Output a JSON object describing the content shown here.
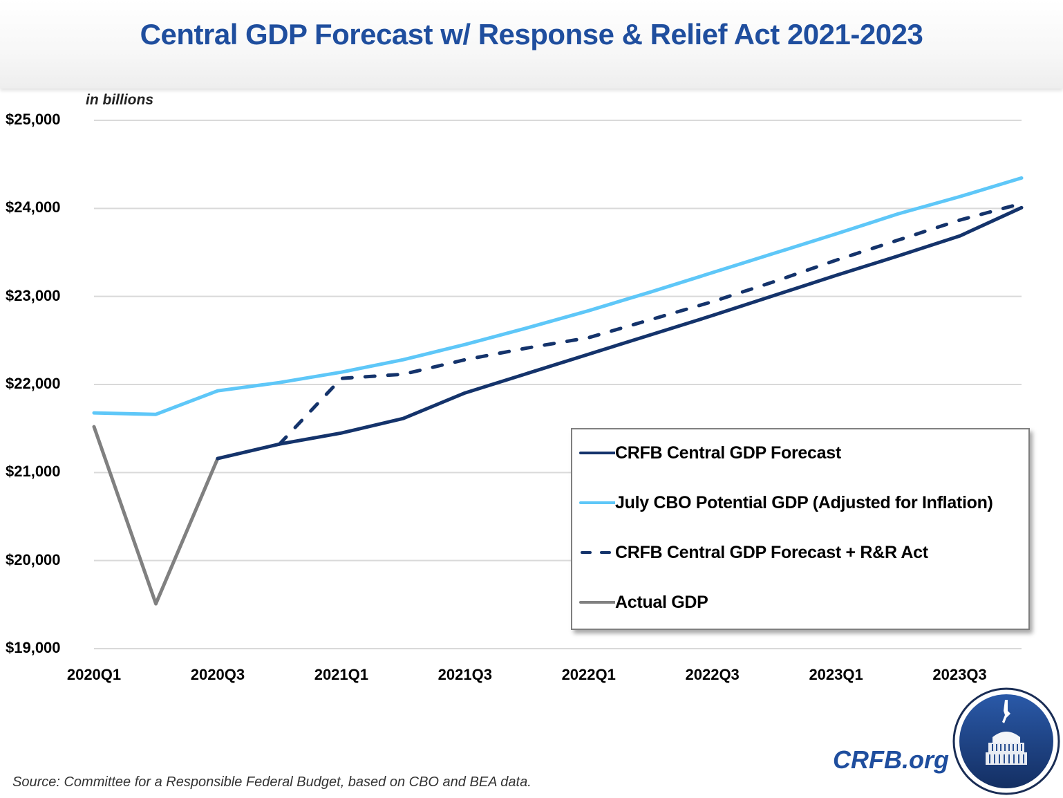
{
  "header": {
    "title": "Central GDP Forecast w/ Response & Relief Act 2021-2023"
  },
  "footer": {
    "source": "Source: Committee for a Responsible Federal Budget, based on CBO and BEA data.",
    "brand": "CRFB.org",
    "logo_icon": "capitol-dome-seal-icon"
  },
  "colors": {
    "title": "#1f4e9e",
    "crfb_forecast": "#14336b",
    "cbo_potential": "#5ec7f8",
    "actual": "#808080",
    "gridline": "#d9d9d9"
  },
  "chart_data": {
    "type": "line",
    "title": "Central GDP Forecast w/ Response & Relief Act 2021-2023",
    "unit_label": "in billions",
    "xlabel": "",
    "ylabel": "",
    "ylim": [
      19000,
      25000
    ],
    "grid": true,
    "legend_position": "bottom-right",
    "x": [
      "2020Q1",
      "2020Q2",
      "2020Q3",
      "2020Q4",
      "2021Q1",
      "2021Q2",
      "2021Q3",
      "2021Q4",
      "2022Q1",
      "2022Q2",
      "2022Q3",
      "2022Q4",
      "2023Q1",
      "2023Q2",
      "2023Q3",
      "2023Q4"
    ],
    "x_tick_labels": [
      "2020Q1",
      "2020Q3",
      "2021Q1",
      "2021Q3",
      "2022Q1",
      "2022Q3",
      "2023Q1",
      "2023Q3"
    ],
    "y_ticks": [
      19000,
      20000,
      21000,
      22000,
      23000,
      24000,
      25000
    ],
    "y_tick_labels": [
      "$19,000",
      "$20,000",
      "$21,000",
      "$22,000",
      "$23,000",
      "$24,000",
      "$25,000"
    ],
    "series": [
      {
        "name": "CRFB Central GDP Forecast",
        "style": "solid",
        "color": "#14336b",
        "values": [
          null,
          null,
          21159,
          21323,
          21449,
          21614,
          21904,
          22124,
          22344,
          22564,
          22783,
          23011,
          23239,
          23458,
          23686,
          24008
        ]
      },
      {
        "name": "July CBO Potential GDP (Adjusted for Inflation)",
        "style": "solid",
        "color": "#5ec7f8",
        "values": [
          21677,
          21661,
          21928,
          22022,
          22140,
          22281,
          22454,
          22642,
          22838,
          23050,
          23270,
          23490,
          23710,
          23937,
          24133,
          24345
        ]
      },
      {
        "name": "CRFB Central GDP Forecast + R&R Act",
        "style": "dashed",
        "color": "#14336b",
        "values": [
          null,
          null,
          null,
          21323,
          22069,
          22116,
          22281,
          22414,
          22532,
          22736,
          22940,
          23168,
          23411,
          23639,
          23867,
          24055
        ]
      },
      {
        "name": "Actual GDP",
        "style": "solid",
        "color": "#808080",
        "values": [
          21520,
          19510,
          21159,
          null,
          null,
          null,
          null,
          null,
          null,
          null,
          null,
          null,
          null,
          null,
          null,
          null
        ]
      }
    ]
  }
}
